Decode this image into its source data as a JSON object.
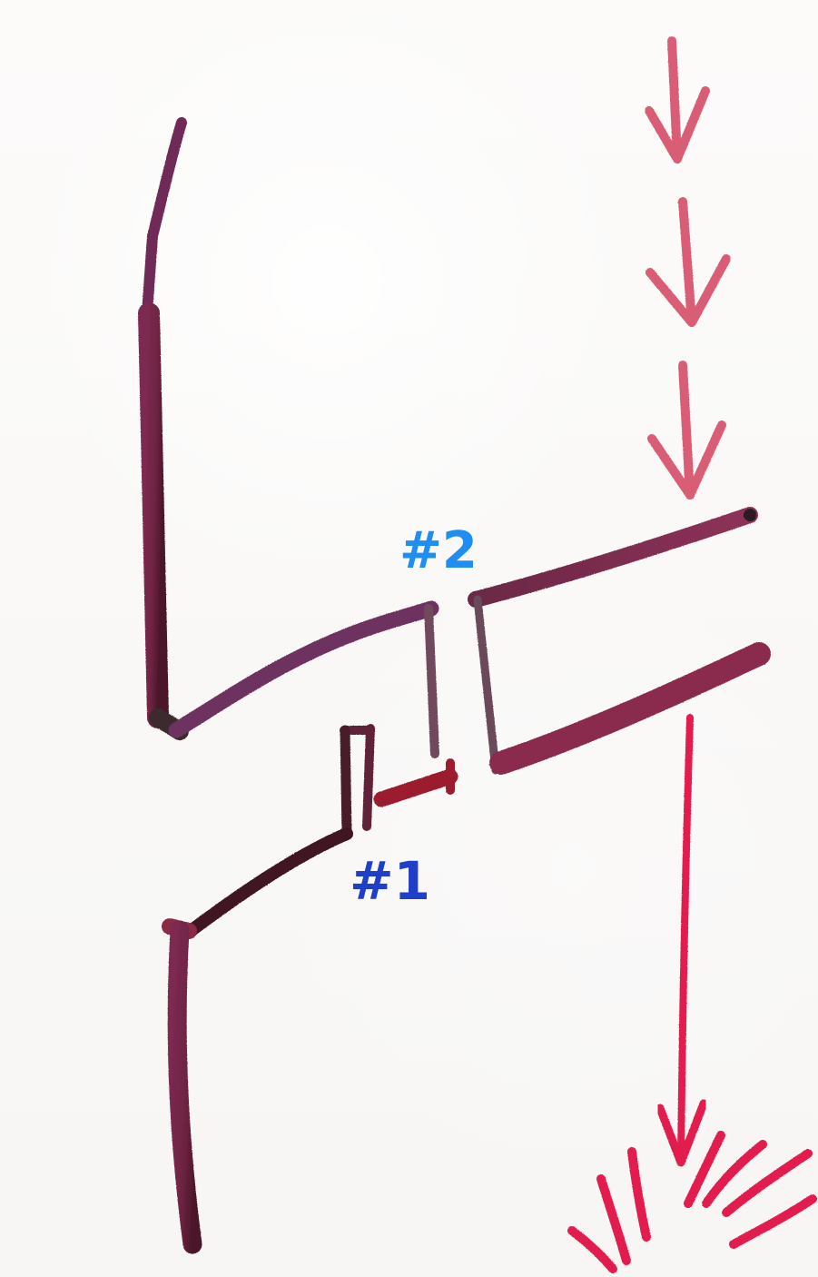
{
  "labels": {
    "one": "#1",
    "two": "#2"
  },
  "colors": {
    "wall": "#6f2440",
    "wall_dark": "#4a1629",
    "arrow": "#d95d74",
    "arrow_strong": "#e21f4d",
    "label_one": "#1f3fc9",
    "label_two": "#1f8ef0"
  },
  "icons": {
    "incoming_arrows": "down-arrow-icon",
    "outgoing_arrow": "long-down-arrow-icon",
    "burst": "impact-burst-icon"
  }
}
